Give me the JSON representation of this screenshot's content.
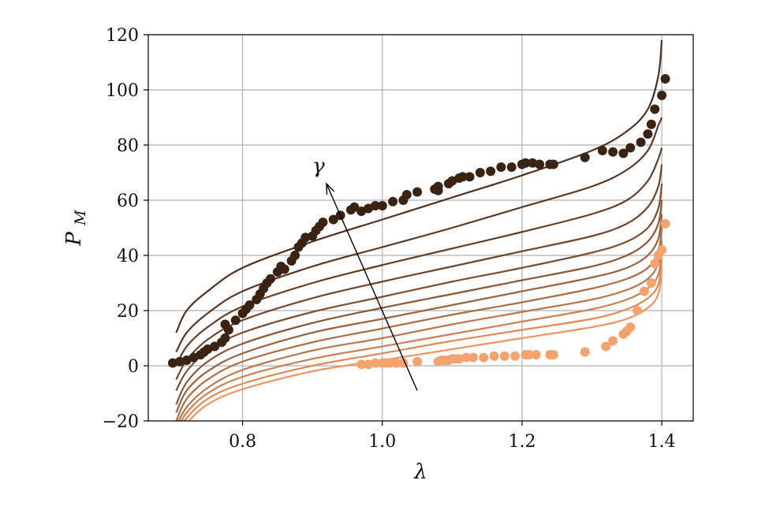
{
  "chart_data": {
    "type": "line",
    "xlabel": "λ",
    "ylabel_main": "P",
    "ylabel_sub": "M",
    "annotation": "γ",
    "xlim": [
      0.665,
      1.445
    ],
    "ylim": [
      -20,
      120
    ],
    "xticks": [
      0.8,
      1.0,
      1.2,
      1.4
    ],
    "xtick_labels": [
      "0.8",
      "1.0",
      "1.2",
      "1.4"
    ],
    "yticks": [
      -20,
      0,
      20,
      40,
      60,
      80,
      100,
      120
    ],
    "ytick_labels": [
      "−20",
      "0",
      "20",
      "40",
      "60",
      "80",
      "100",
      "120"
    ],
    "grid": true,
    "annotation_arrow": {
      "from": [
        1.05,
        -9
      ],
      "to": [
        0.92,
        66
      ]
    },
    "curve_x_range": [
      0.705,
      1.4
    ],
    "model_curves": [
      {
        "color": "#52311f",
        "values": [
          [
            0.705,
            12
          ],
          [
            0.72,
            20
          ],
          [
            0.75,
            27
          ],
          [
            0.8,
            35.5
          ],
          [
            0.9,
            45
          ],
          [
            1.0,
            53
          ],
          [
            1.1,
            61
          ],
          [
            1.2,
            69
          ],
          [
            1.3,
            78
          ],
          [
            1.35,
            85
          ],
          [
            1.38,
            93
          ],
          [
            1.395,
            105
          ],
          [
            1.4,
            118
          ]
        ]
      },
      {
        "color": "#5c3824",
        "values": [
          [
            0.705,
            5
          ],
          [
            0.72,
            12
          ],
          [
            0.75,
            19
          ],
          [
            0.8,
            27
          ],
          [
            0.9,
            36
          ],
          [
            1.0,
            43
          ],
          [
            1.1,
            50
          ],
          [
            1.2,
            57.5
          ],
          [
            1.3,
            65
          ],
          [
            1.35,
            71
          ],
          [
            1.38,
            78
          ],
          [
            1.395,
            87
          ],
          [
            1.4,
            90
          ]
        ]
      },
      {
        "color": "#663e28",
        "values": [
          [
            0.705,
            0
          ],
          [
            0.72,
            7
          ],
          [
            0.75,
            14
          ],
          [
            0.8,
            21.5
          ],
          [
            0.9,
            30
          ],
          [
            1.0,
            36.5
          ],
          [
            1.1,
            42.5
          ],
          [
            1.2,
            48.5
          ],
          [
            1.3,
            55
          ],
          [
            1.35,
            60
          ],
          [
            1.38,
            67
          ],
          [
            1.395,
            75
          ],
          [
            1.4,
            79
          ]
        ]
      },
      {
        "color": "#70452d",
        "values": [
          [
            0.705,
            -5
          ],
          [
            0.72,
            2
          ],
          [
            0.75,
            9.5
          ],
          [
            0.8,
            16.5
          ],
          [
            0.9,
            24.5
          ],
          [
            1.0,
            30.5
          ],
          [
            1.1,
            36
          ],
          [
            1.2,
            41.5
          ],
          [
            1.3,
            47
          ],
          [
            1.35,
            51.5
          ],
          [
            1.38,
            57.5
          ],
          [
            1.395,
            65
          ],
          [
            1.4,
            73
          ]
        ]
      },
      {
        "color": "#7d4e32",
        "values": [
          [
            0.705,
            -9
          ],
          [
            0.72,
            -2
          ],
          [
            0.75,
            5.5
          ],
          [
            0.8,
            12
          ],
          [
            0.9,
            19.5
          ],
          [
            1.0,
            25
          ],
          [
            1.1,
            30.5
          ],
          [
            1.2,
            35.5
          ],
          [
            1.3,
            41
          ],
          [
            1.35,
            45
          ],
          [
            1.38,
            50
          ],
          [
            1.395,
            57
          ],
          [
            1.4,
            66
          ]
        ]
      },
      {
        "color": "#8a5838",
        "values": [
          [
            0.705,
            -14
          ],
          [
            0.72,
            -6
          ],
          [
            0.75,
            1.5
          ],
          [
            0.8,
            8
          ],
          [
            0.9,
            15.5
          ],
          [
            1.0,
            21
          ],
          [
            1.1,
            26
          ],
          [
            1.2,
            31
          ],
          [
            1.3,
            36
          ],
          [
            1.35,
            40
          ],
          [
            1.38,
            45
          ],
          [
            1.395,
            51.5
          ],
          [
            1.4,
            60
          ]
        ]
      },
      {
        "color": "#9a623e",
        "values": [
          [
            0.705,
            -17
          ],
          [
            0.72,
            -9
          ],
          [
            0.75,
            -2
          ],
          [
            0.8,
            4.5
          ],
          [
            0.9,
            12
          ],
          [
            1.0,
            17
          ],
          [
            1.1,
            22
          ],
          [
            1.2,
            27
          ],
          [
            1.3,
            32
          ],
          [
            1.35,
            35.5
          ],
          [
            1.38,
            40
          ],
          [
            1.395,
            46
          ],
          [
            1.4,
            55
          ]
        ]
      },
      {
        "color": "#ab6d44",
        "values": [
          [
            0.705,
            -20
          ],
          [
            0.72,
            -12
          ],
          [
            0.75,
            -5
          ],
          [
            0.8,
            1.5
          ],
          [
            0.9,
            8.5
          ],
          [
            1.0,
            13.5
          ],
          [
            1.1,
            18.5
          ],
          [
            1.2,
            23
          ],
          [
            1.3,
            28
          ],
          [
            1.35,
            31.5
          ],
          [
            1.38,
            35.5
          ],
          [
            1.395,
            41.5
          ],
          [
            1.4,
            50
          ]
        ]
      },
      {
        "color": "#bb774b",
        "values": [
          [
            0.705,
            -22
          ],
          [
            0.72,
            -15
          ],
          [
            0.75,
            -8
          ],
          [
            0.8,
            -1.5
          ],
          [
            0.9,
            5.5
          ],
          [
            1.0,
            10
          ],
          [
            1.1,
            15
          ],
          [
            1.2,
            19.5
          ],
          [
            1.3,
            24
          ],
          [
            1.35,
            27.5
          ],
          [
            1.38,
            31.5
          ],
          [
            1.395,
            37
          ],
          [
            1.4,
            45.5
          ]
        ]
      },
      {
        "color": "#cc8152",
        "values": [
          [
            0.705,
            -24
          ],
          [
            0.72,
            -17
          ],
          [
            0.75,
            -10
          ],
          [
            0.8,
            -4
          ],
          [
            0.9,
            2.5
          ],
          [
            1.0,
            7
          ],
          [
            1.1,
            11.5
          ],
          [
            1.2,
            16
          ],
          [
            1.3,
            20.5
          ],
          [
            1.35,
            24
          ],
          [
            1.38,
            28
          ],
          [
            1.395,
            33
          ],
          [
            1.4,
            42
          ]
        ]
      },
      {
        "color": "#dd8b58",
        "values": [
          [
            0.705,
            -26
          ],
          [
            0.72,
            -19
          ],
          [
            0.75,
            -12
          ],
          [
            0.8,
            -6.5
          ],
          [
            0.9,
            0
          ],
          [
            1.0,
            4.5
          ],
          [
            1.1,
            9
          ],
          [
            1.2,
            13
          ],
          [
            1.3,
            17
          ],
          [
            1.35,
            20.5
          ],
          [
            1.38,
            24.5
          ],
          [
            1.395,
            29.5
          ],
          [
            1.4,
            39
          ]
        ]
      },
      {
        "color": "#ec955f",
        "values": [
          [
            0.705,
            -28
          ],
          [
            0.72,
            -21
          ],
          [
            0.75,
            -14
          ],
          [
            0.8,
            -8.5
          ],
          [
            0.9,
            -2
          ],
          [
            1.0,
            2
          ],
          [
            1.1,
            6
          ],
          [
            1.2,
            10
          ],
          [
            1.3,
            14
          ],
          [
            1.35,
            17
          ],
          [
            1.38,
            21
          ],
          [
            1.395,
            26
          ],
          [
            1.4,
            36
          ]
        ]
      }
    ],
    "scatter_series": [
      {
        "color": "#3b2314",
        "points": [
          [
            0.7,
            1
          ],
          [
            0.71,
            1.5
          ],
          [
            0.72,
            2
          ],
          [
            0.73,
            3
          ],
          [
            0.74,
            4
          ],
          [
            0.745,
            5
          ],
          [
            0.75,
            6
          ],
          [
            0.76,
            7
          ],
          [
            0.77,
            8.5
          ],
          [
            0.775,
            10
          ],
          [
            0.78,
            13
          ],
          [
            0.775,
            15
          ],
          [
            0.79,
            16.5
          ],
          [
            0.8,
            19
          ],
          [
            0.805,
            20.5
          ],
          [
            0.81,
            22
          ],
          [
            0.82,
            24
          ],
          [
            0.825,
            26
          ],
          [
            0.83,
            28
          ],
          [
            0.835,
            30
          ],
          [
            0.84,
            31.5
          ],
          [
            0.85,
            34
          ],
          [
            0.855,
            36
          ],
          [
            0.86,
            35
          ],
          [
            0.87,
            38
          ],
          [
            0.875,
            40
          ],
          [
            0.88,
            43
          ],
          [
            0.885,
            44.5
          ],
          [
            0.89,
            46.5
          ],
          [
            0.9,
            47
          ],
          [
            0.905,
            49
          ],
          [
            0.91,
            50.5
          ],
          [
            0.915,
            52
          ],
          [
            0.93,
            53
          ],
          [
            0.94,
            54.5
          ],
          [
            0.955,
            56.5
          ],
          [
            0.96,
            57.5
          ],
          [
            0.97,
            56
          ],
          [
            0.98,
            57
          ],
          [
            0.99,
            58
          ],
          [
            1.0,
            58
          ],
          [
            1.015,
            59.5
          ],
          [
            1.03,
            60
          ],
          [
            1.035,
            62
          ],
          [
            1.05,
            63
          ],
          [
            1.075,
            64
          ],
          [
            1.08,
            63.5
          ],
          [
            1.08,
            65
          ],
          [
            1.095,
            66
          ],
          [
            1.1,
            67
          ],
          [
            1.11,
            68
          ],
          [
            1.115,
            68.5
          ],
          [
            1.125,
            68.5
          ],
          [
            1.14,
            70
          ],
          [
            1.155,
            70.5
          ],
          [
            1.17,
            72
          ],
          [
            1.185,
            72
          ],
          [
            1.2,
            73
          ],
          [
            1.205,
            73.5
          ],
          [
            1.215,
            73.5
          ],
          [
            1.225,
            73
          ],
          [
            1.24,
            73
          ],
          [
            1.245,
            73
          ],
          [
            1.29,
            75.5
          ],
          [
            1.315,
            78
          ],
          [
            1.33,
            77.5
          ],
          [
            1.345,
            77
          ],
          [
            1.355,
            79
          ],
          [
            1.37,
            81
          ],
          [
            1.38,
            84
          ],
          [
            1.385,
            87.5
          ],
          [
            1.39,
            93
          ],
          [
            1.4,
            98
          ],
          [
            1.405,
            104
          ]
        ]
      },
      {
        "color": "#f4a36e",
        "points": [
          [
            0.97,
            0.5
          ],
          [
            0.98,
            0.5
          ],
          [
            0.99,
            1
          ],
          [
            1.0,
            1
          ],
          [
            1.005,
            1
          ],
          [
            1.01,
            1
          ],
          [
            1.02,
            1
          ],
          [
            1.03,
            1
          ],
          [
            1.05,
            1.5
          ],
          [
            1.08,
            1.5
          ],
          [
            1.085,
            2
          ],
          [
            1.09,
            2
          ],
          [
            1.095,
            2
          ],
          [
            1.1,
            2.5
          ],
          [
            1.105,
            2.5
          ],
          [
            1.11,
            2.5
          ],
          [
            1.12,
            3
          ],
          [
            1.13,
            3
          ],
          [
            1.145,
            3
          ],
          [
            1.16,
            3.5
          ],
          [
            1.175,
            3.5
          ],
          [
            1.19,
            3.5
          ],
          [
            1.205,
            4
          ],
          [
            1.21,
            4
          ],
          [
            1.22,
            4
          ],
          [
            1.24,
            4
          ],
          [
            1.245,
            4
          ],
          [
            1.29,
            5
          ],
          [
            1.32,
            7
          ],
          [
            1.33,
            9
          ],
          [
            1.345,
            11.5
          ],
          [
            1.35,
            12.5
          ],
          [
            1.355,
            14
          ],
          [
            1.365,
            20
          ],
          [
            1.375,
            27
          ],
          [
            1.385,
            30
          ],
          [
            1.39,
            37
          ],
          [
            1.395,
            40
          ],
          [
            1.4,
            42
          ],
          [
            1.405,
            51.5
          ]
        ]
      }
    ]
  }
}
